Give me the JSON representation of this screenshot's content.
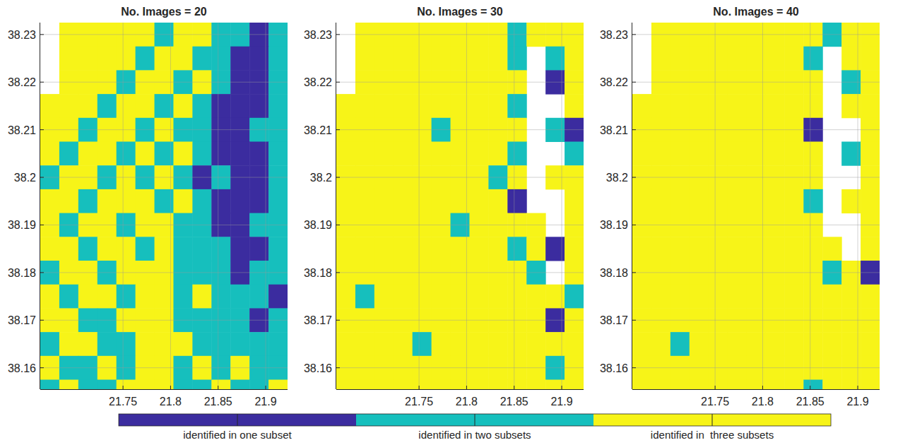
{
  "chart_data": [
    {
      "type": "heatmap",
      "title": "No. Images = 20",
      "xlim": [
        21.663,
        21.923
      ],
      "ylim": [
        38.1555,
        38.2325
      ],
      "xticks": [
        21.75,
        21.8,
        21.85,
        21.9
      ],
      "yticks": [
        38.16,
        38.17,
        38.18,
        38.19,
        38.2,
        38.21,
        38.22,
        38.23
      ],
      "grid": true,
      "x_edges": [
        21.663,
        21.683,
        21.703,
        21.723,
        21.743,
        21.763,
        21.783,
        21.803,
        21.823,
        21.843,
        21.863,
        21.883,
        21.903,
        21.923
      ],
      "y_edges": [
        38.2325,
        38.2275,
        38.2225,
        38.2175,
        38.2125,
        38.2075,
        38.2025,
        38.1975,
        38.1925,
        38.1875,
        38.1825,
        38.1775,
        38.1725,
        38.1675,
        38.1625,
        38.1575,
        38.1525
      ],
      "z": [
        [
          null,
          3,
          3,
          3,
          3,
          3,
          2,
          3,
          3,
          2,
          2,
          1,
          2
        ],
        [
          null,
          3,
          3,
          3,
          3,
          2,
          3,
          3,
          2,
          2,
          1,
          1,
          2
        ],
        [
          null,
          3,
          3,
          3,
          2,
          3,
          3,
          2,
          3,
          2,
          1,
          1,
          2
        ],
        [
          3,
          3,
          3,
          2,
          3,
          3,
          2,
          3,
          2,
          1,
          1,
          1,
          2
        ],
        [
          3,
          3,
          2,
          3,
          3,
          2,
          3,
          2,
          2,
          1,
          1,
          2,
          2
        ],
        [
          3,
          2,
          3,
          3,
          2,
          3,
          2,
          3,
          2,
          1,
          1,
          1,
          2
        ],
        [
          2,
          3,
          3,
          2,
          3,
          2,
          3,
          2,
          1,
          2,
          1,
          1,
          2
        ],
        [
          3,
          3,
          2,
          3,
          3,
          3,
          2,
          3,
          2,
          1,
          1,
          1,
          2
        ],
        [
          3,
          2,
          3,
          3,
          2,
          3,
          3,
          2,
          2,
          1,
          1,
          2,
          2
        ],
        [
          3,
          3,
          2,
          3,
          3,
          2,
          3,
          2,
          2,
          2,
          1,
          1,
          2
        ],
        [
          2,
          3,
          3,
          2,
          3,
          3,
          3,
          2,
          2,
          2,
          1,
          2,
          2
        ],
        [
          3,
          2,
          3,
          3,
          2,
          3,
          3,
          2,
          3,
          2,
          2,
          2,
          1
        ],
        [
          3,
          3,
          2,
          2,
          3,
          3,
          3,
          2,
          2,
          2,
          2,
          1,
          2
        ],
        [
          2,
          3,
          3,
          2,
          2,
          3,
          3,
          3,
          2,
          2,
          2,
          2,
          2
        ],
        [
          3,
          2,
          2,
          3,
          2,
          3,
          3,
          2,
          3,
          2,
          3,
          2,
          2
        ],
        [
          2,
          3,
          2,
          2,
          3,
          3,
          3,
          2,
          2,
          3,
          2,
          2,
          3
        ]
      ]
    },
    {
      "type": "heatmap",
      "title": "No. Images = 30",
      "xlim": [
        21.663,
        21.923
      ],
      "ylim": [
        38.1555,
        38.2325
      ],
      "xticks": [
        21.75,
        21.8,
        21.85,
        21.9
      ],
      "yticks": [
        38.16,
        38.17,
        38.18,
        38.19,
        38.2,
        38.21,
        38.22,
        38.23
      ],
      "grid": true,
      "x_edges": [
        21.663,
        21.683,
        21.703,
        21.723,
        21.743,
        21.763,
        21.783,
        21.803,
        21.823,
        21.843,
        21.863,
        21.883,
        21.903,
        21.923
      ],
      "y_edges": [
        38.2325,
        38.2275,
        38.2225,
        38.2175,
        38.2125,
        38.2075,
        38.2025,
        38.1975,
        38.1925,
        38.1875,
        38.1825,
        38.1775,
        38.1725,
        38.1675,
        38.1625,
        38.1575,
        38.1525
      ],
      "z": [
        [
          null,
          3,
          3,
          3,
          3,
          3,
          3,
          3,
          3,
          2,
          3,
          3,
          3
        ],
        [
          null,
          3,
          3,
          3,
          3,
          3,
          3,
          3,
          3,
          2,
          null,
          2,
          3
        ],
        [
          null,
          3,
          3,
          3,
          3,
          3,
          3,
          3,
          3,
          3,
          null,
          1,
          3
        ],
        [
          3,
          3,
          3,
          3,
          3,
          3,
          3,
          3,
          3,
          2,
          null,
          null,
          3
        ],
        [
          3,
          3,
          3,
          3,
          3,
          2,
          3,
          3,
          3,
          3,
          null,
          2,
          1
        ],
        [
          3,
          3,
          3,
          3,
          3,
          3,
          3,
          3,
          3,
          2,
          null,
          null,
          2
        ],
        [
          3,
          3,
          3,
          3,
          3,
          3,
          3,
          3,
          2,
          3,
          null,
          3,
          3
        ],
        [
          3,
          3,
          3,
          3,
          3,
          3,
          3,
          3,
          3,
          1,
          null,
          null,
          3
        ],
        [
          3,
          3,
          3,
          3,
          3,
          3,
          2,
          3,
          3,
          3,
          3,
          null,
          3
        ],
        [
          3,
          3,
          3,
          3,
          3,
          3,
          3,
          3,
          3,
          2,
          3,
          1,
          3
        ],
        [
          3,
          3,
          3,
          3,
          3,
          3,
          3,
          3,
          3,
          3,
          2,
          null,
          3
        ],
        [
          3,
          2,
          3,
          3,
          3,
          3,
          3,
          3,
          3,
          3,
          3,
          3,
          2
        ],
        [
          3,
          3,
          3,
          3,
          3,
          3,
          3,
          3,
          3,
          3,
          3,
          1,
          3
        ],
        [
          3,
          3,
          3,
          3,
          2,
          3,
          3,
          3,
          3,
          3,
          3,
          3,
          3
        ],
        [
          3,
          3,
          3,
          3,
          3,
          3,
          3,
          3,
          3,
          3,
          3,
          2,
          3
        ],
        [
          3,
          3,
          3,
          3,
          3,
          3,
          3,
          3,
          3,
          3,
          3,
          3,
          3
        ]
      ]
    },
    {
      "type": "heatmap",
      "title": "No. Images = 40",
      "xlim": [
        21.663,
        21.923
      ],
      "ylim": [
        38.1555,
        38.2325
      ],
      "xticks": [
        21.75,
        21.8,
        21.85,
        21.9
      ],
      "yticks": [
        38.16,
        38.17,
        38.18,
        38.19,
        38.2,
        38.21,
        38.22,
        38.23
      ],
      "grid": true,
      "x_edges": [
        21.663,
        21.683,
        21.703,
        21.723,
        21.743,
        21.763,
        21.783,
        21.803,
        21.823,
        21.843,
        21.863,
        21.883,
        21.903,
        21.923
      ],
      "y_edges": [
        38.2325,
        38.2275,
        38.2225,
        38.2175,
        38.2125,
        38.2075,
        38.2025,
        38.1975,
        38.1925,
        38.1875,
        38.1825,
        38.1775,
        38.1725,
        38.1675,
        38.1625,
        38.1575,
        38.1525
      ],
      "z": [
        [
          null,
          3,
          3,
          3,
          3,
          3,
          3,
          3,
          3,
          3,
          2,
          3,
          3
        ],
        [
          null,
          3,
          3,
          3,
          3,
          3,
          3,
          3,
          3,
          2,
          null,
          3,
          3
        ],
        [
          null,
          3,
          3,
          3,
          3,
          3,
          3,
          3,
          3,
          3,
          null,
          2,
          3
        ],
        [
          3,
          3,
          3,
          3,
          3,
          3,
          3,
          3,
          3,
          3,
          null,
          3,
          3
        ],
        [
          3,
          3,
          3,
          3,
          3,
          3,
          3,
          3,
          3,
          1,
          null,
          null,
          3
        ],
        [
          3,
          3,
          3,
          3,
          3,
          3,
          3,
          3,
          3,
          3,
          null,
          2,
          3
        ],
        [
          3,
          3,
          3,
          3,
          3,
          3,
          3,
          3,
          3,
          3,
          null,
          null,
          3
        ],
        [
          3,
          3,
          3,
          3,
          3,
          3,
          3,
          3,
          3,
          2,
          null,
          3,
          3
        ],
        [
          3,
          3,
          3,
          3,
          3,
          3,
          3,
          3,
          3,
          3,
          null,
          null,
          3
        ],
        [
          3,
          3,
          3,
          3,
          3,
          3,
          3,
          3,
          3,
          3,
          3,
          null,
          3
        ],
        [
          3,
          3,
          3,
          3,
          3,
          3,
          3,
          3,
          3,
          3,
          2,
          3,
          1
        ],
        [
          3,
          3,
          3,
          3,
          3,
          3,
          3,
          3,
          3,
          3,
          3,
          3,
          3
        ],
        [
          3,
          3,
          3,
          3,
          3,
          3,
          3,
          3,
          3,
          3,
          3,
          3,
          3
        ],
        [
          3,
          3,
          2,
          3,
          3,
          3,
          3,
          3,
          3,
          3,
          3,
          3,
          3
        ],
        [
          3,
          3,
          3,
          3,
          3,
          3,
          3,
          3,
          3,
          3,
          3,
          3,
          3
        ],
        [
          3,
          3,
          3,
          3,
          3,
          3,
          3,
          3,
          3,
          2,
          3,
          3,
          3
        ]
      ]
    }
  ],
  "colorbar": {
    "range": [
      0.5,
      3.5
    ],
    "colors": [
      "#3b2c9f",
      "#16bfbd",
      "#f7f418"
    ],
    "ticks": [
      {
        "value": 1,
        "label": "identified in one subset"
      },
      {
        "value": 2,
        "label": "identified in two subsets"
      },
      {
        "value": 3,
        "label": "identified in  three subsets"
      }
    ]
  }
}
